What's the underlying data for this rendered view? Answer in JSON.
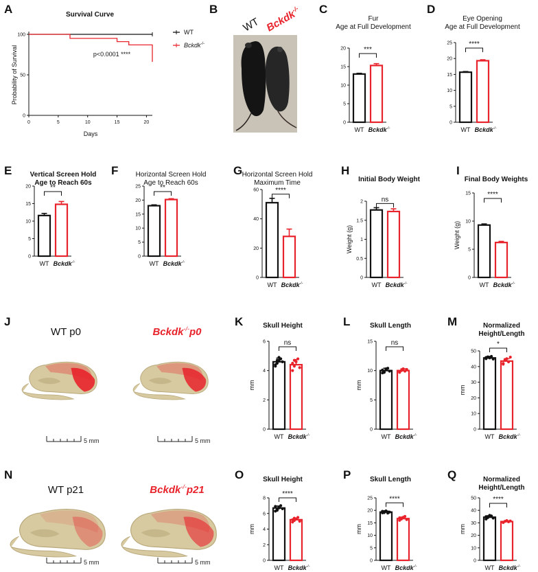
{
  "colors": {
    "wt": "#111111",
    "ko": "#e8232b",
    "bone": "#d7c9a0",
    "bone_dark": "#b8a77a",
    "photo_bg": "#c9c3b7"
  },
  "panel_A": {
    "label": "A",
    "title": "Survival Curve",
    "ylabel": "Probability of Survival",
    "xlabel": "Days",
    "pvalue": "p<0.0001 ****",
    "legend": [
      {
        "name": "WT",
        "italic": false
      },
      {
        "name": "Bckdk",
        "sup": "-/-",
        "italic": true
      }
    ]
  },
  "panel_B": {
    "label": "B",
    "left_label": "WT",
    "right_label": "Bckdk",
    "right_sup": "-/-"
  },
  "panels": {
    "C": {
      "label": "C",
      "title1": "Fur",
      "title2": "Age at Full Development",
      "bold": false,
      "ylabel": "",
      "sig": "***",
      "wt": "WT",
      "ko": "Bckdk",
      "ko_sup": "-/-"
    },
    "D": {
      "label": "D",
      "title1": "Eye Opening",
      "title2": "Age at Full Development",
      "bold": false,
      "ylabel": "",
      "sig": "****",
      "wt": "WT",
      "ko": "Bckdk",
      "ko_sup": "-/-"
    },
    "E": {
      "label": "E",
      "title1": "Vertical Screen Hold",
      "title2": "Age to Reach 60s",
      "bold": true,
      "ylabel": "",
      "sig": "**",
      "wt": "WT",
      "ko": "Bckdk",
      "ko_sup": "-/-"
    },
    "F": {
      "label": "F",
      "title1": "Horizontal Screen Hold",
      "title2": "Age to Reach 60s",
      "bold": false,
      "ylabel": "",
      "sig": "**",
      "wt": "WT",
      "ko": "Bckdk",
      "ko_sup": "-/-"
    },
    "G": {
      "label": "G",
      "title1": "Horizontal Screen Hold",
      "title2": "Maximum Time",
      "bold": false,
      "ylabel": "",
      "sig": "****",
      "wt": "WT",
      "ko": "Bckdk",
      "ko_sup": "-/-"
    },
    "H": {
      "label": "H",
      "title1": "Initial Body Weight",
      "title2": "",
      "bold": true,
      "ylabel": "Weight (g)",
      "sig": "ns",
      "wt": "WT",
      "ko": "Bckdk",
      "ko_sup": "-/-"
    },
    "I": {
      "label": "I",
      "title1": "Final Body Weights",
      "title2": "",
      "bold": true,
      "ylabel": "Weight (g)",
      "sig": "****",
      "wt": "WT",
      "ko": "Bckdk",
      "ko_sup": "-/-"
    },
    "K": {
      "label": "K",
      "title1": "Skull Height",
      "title2": "",
      "bold": true,
      "ylabel": "mm",
      "sig": "ns",
      "wt": "WT",
      "ko": "Bckdk",
      "ko_sup": "-/-"
    },
    "L": {
      "label": "L",
      "title1": "Skull Length",
      "title2": "",
      "bold": true,
      "ylabel": "mm",
      "sig": "ns",
      "wt": "WT",
      "ko": "Bckdk",
      "ko_sup": "-/-"
    },
    "M": {
      "label": "M",
      "title1": "Normalized",
      "title2": "Height/Length",
      "bold": true,
      "ylabel": "mm",
      "sig": "*",
      "wt": "WT",
      "ko": "Bckdk",
      "ko_sup": "-/-"
    },
    "O": {
      "label": "O",
      "title1": "Skull Height",
      "title2": "",
      "bold": true,
      "ylabel": "mm",
      "sig": "****",
      "wt": "WT",
      "ko": "Bckdk",
      "ko_sup": "-/-"
    },
    "P": {
      "label": "P",
      "title1": "Skull Length",
      "title2": "",
      "bold": true,
      "ylabel": "mm",
      "sig": "****",
      "wt": "WT",
      "ko": "Bckdk",
      "ko_sup": "-/-"
    },
    "Q": {
      "label": "Q",
      "title1": "Normalized",
      "title2": "Height/Length",
      "bold": true,
      "ylabel": "mm",
      "sig": "****",
      "wt": "WT",
      "ko": "Bckdk",
      "ko_sup": "-/-"
    }
  },
  "panel_J": {
    "label": "J",
    "wt_title": "WT p0",
    "ko_title": "Bckdk",
    "ko_sup": "-/-",
    "ko_suffix": "p0",
    "scale": "5 mm"
  },
  "panel_N": {
    "label": "N",
    "wt_title": "WT p21",
    "ko_title": "Bckdk",
    "ko_sup": "-/-",
    "ko_suffix": "p21",
    "scale": "5 mm"
  },
  "chart_data": [
    {
      "id": "A",
      "type": "line",
      "title": "Survival Curve",
      "xlabel": "Days",
      "ylabel": "Probability of Survival",
      "xlim": [
        0,
        21
      ],
      "ylim": [
        0,
        100
      ],
      "xticks": [
        0,
        5,
        10,
        15,
        20
      ],
      "yticks": [
        0,
        50,
        100
      ],
      "series": [
        {
          "name": "WT",
          "x": [
            0,
            21
          ],
          "y": [
            100,
            100
          ]
        },
        {
          "name": "Bckdk-/-",
          "x": [
            0,
            7,
            7,
            15,
            15,
            17,
            17,
            21,
            21
          ],
          "y": [
            100,
            100,
            95,
            95,
            91,
            91,
            87,
            87,
            66
          ]
        }
      ]
    },
    {
      "id": "C",
      "type": "bar",
      "categories": [
        "WT",
        "Bckdk-/-"
      ],
      "values": [
        13,
        15.3
      ],
      "errors": [
        0.2,
        0.5
      ],
      "ylim": [
        0,
        20
      ],
      "yticks": [
        0,
        5,
        10,
        15,
        20
      ]
    },
    {
      "id": "D",
      "type": "bar",
      "categories": [
        "WT",
        "Bckdk-/-"
      ],
      "values": [
        15.7,
        19.3
      ],
      "errors": [
        0.2,
        0.3
      ],
      "ylim": [
        0,
        25
      ],
      "yticks": [
        0,
        5,
        10,
        15,
        20,
        25
      ]
    },
    {
      "id": "E",
      "type": "bar",
      "categories": [
        "WT",
        "Bckdk-/-"
      ],
      "values": [
        11.6,
        14.8
      ],
      "errors": [
        0.6,
        0.8
      ],
      "ylim": [
        0,
        20
      ],
      "yticks": [
        0,
        5,
        10,
        15,
        20
      ]
    },
    {
      "id": "F",
      "type": "bar",
      "categories": [
        "WT",
        "Bckdk-/-"
      ],
      "values": [
        18,
        20.2
      ],
      "errors": [
        0.3,
        0.3
      ],
      "ylim": [
        0,
        25
      ],
      "yticks": [
        0,
        5,
        10,
        15,
        20,
        25
      ]
    },
    {
      "id": "G",
      "type": "bar",
      "categories": [
        "WT",
        "Bckdk-/-"
      ],
      "values": [
        51,
        28
      ],
      "errors": [
        3,
        5
      ],
      "ylim": [
        0,
        60
      ],
      "yticks": [
        0,
        20,
        40,
        60
      ]
    },
    {
      "id": "H",
      "type": "bar",
      "categories": [
        "WT",
        "Bckdk-/-"
      ],
      "values": [
        1.77,
        1.73
      ],
      "errors": [
        0.06,
        0.07
      ],
      "ylim": [
        0,
        2.0
      ],
      "yticks": [
        0.0,
        0.5,
        1.0,
        1.5,
        2.0
      ]
    },
    {
      "id": "I",
      "type": "bar",
      "categories": [
        "WT",
        "Bckdk-/-"
      ],
      "values": [
        9.3,
        6.2
      ],
      "errors": [
        0.2,
        0.2
      ],
      "ylim": [
        0,
        15
      ],
      "yticks": [
        0,
        5,
        10,
        15
      ]
    },
    {
      "id": "K",
      "type": "bar",
      "categories": [
        "WT",
        "Bckdk-/-"
      ],
      "values": [
        4.6,
        4.4
      ],
      "errors": [
        0.25,
        0.35
      ],
      "ylim": [
        0,
        6
      ],
      "yticks": [
        0,
        2,
        4,
        6
      ],
      "points": [
        [
          4.3,
          4.5,
          4.7,
          4.8,
          4.6,
          4.4,
          4.7,
          4.9
        ],
        [
          4.0,
          4.3,
          4.6,
          4.8,
          4.2,
          4.5,
          4.7
        ]
      ]
    },
    {
      "id": "L",
      "type": "bar",
      "categories": [
        "WT",
        "Bckdk-/-"
      ],
      "values": [
        10,
        10
      ],
      "errors": [
        0.4,
        0.3
      ],
      "ylim": [
        0,
        15
      ],
      "yticks": [
        0,
        5,
        10,
        15
      ],
      "points": [
        [
          9.6,
          9.8,
          10.2,
          10.4,
          9.9,
          10.1,
          9.7,
          10.3
        ],
        [
          9.7,
          10.0,
          10.3,
          9.9,
          10.2,
          9.8
        ]
      ]
    },
    {
      "id": "M",
      "type": "bar",
      "categories": [
        "WT",
        "Bckdk-/-"
      ],
      "values": [
        45.5,
        43.5
      ],
      "errors": [
        1,
        1.5
      ],
      "ylim": [
        0,
        50
      ],
      "yticks": [
        0,
        10,
        20,
        30,
        40,
        50
      ],
      "points": [
        [
          45,
          46,
          45.5,
          46.5,
          44.8,
          45.8,
          46.2
        ],
        [
          42,
          44,
          45,
          43,
          46,
          41.5,
          44.5
        ]
      ]
    },
    {
      "id": "O",
      "type": "bar",
      "categories": [
        "WT",
        "Bckdk-/-"
      ],
      "values": [
        6.7,
        5.2
      ],
      "errors": [
        0.25,
        0.2
      ],
      "ylim": [
        0,
        8
      ],
      "yticks": [
        0,
        2,
        4,
        6,
        8
      ],
      "points": [
        [
          6.3,
          6.5,
          6.8,
          7.0,
          6.6,
          6.9,
          6.4,
          6.7
        ],
        [
          4.9,
          5.1,
          5.3,
          5.5,
          5.0,
          5.2,
          5.4
        ]
      ]
    },
    {
      "id": "P",
      "type": "bar",
      "categories": [
        "WT",
        "Bckdk-/-"
      ],
      "values": [
        19.3,
        16.7
      ],
      "errors": [
        0.4,
        0.6
      ],
      "ylim": [
        0,
        25
      ],
      "yticks": [
        0,
        5,
        10,
        15,
        20,
        25
      ],
      "points": [
        [
          19.0,
          19.5,
          19.8,
          18.9,
          19.3,
          19.6,
          19.1
        ],
        [
          16.0,
          16.5,
          17.2,
          17.6,
          16.3,
          17.0,
          16.8
        ]
      ]
    },
    {
      "id": "Q",
      "type": "bar",
      "categories": [
        "WT",
        "Bckdk-/-"
      ],
      "values": [
        34.5,
        31
      ],
      "errors": [
        1.2,
        0.6
      ],
      "ylim": [
        0,
        50
      ],
      "yticks": [
        0,
        10,
        20,
        30,
        40,
        50
      ],
      "points": [
        [
          33,
          34.5,
          36,
          35.5,
          33.8,
          35,
          34.2
        ],
        [
          30.5,
          31.2,
          31.8,
          30.8,
          31.5,
          30.2
        ]
      ]
    }
  ]
}
